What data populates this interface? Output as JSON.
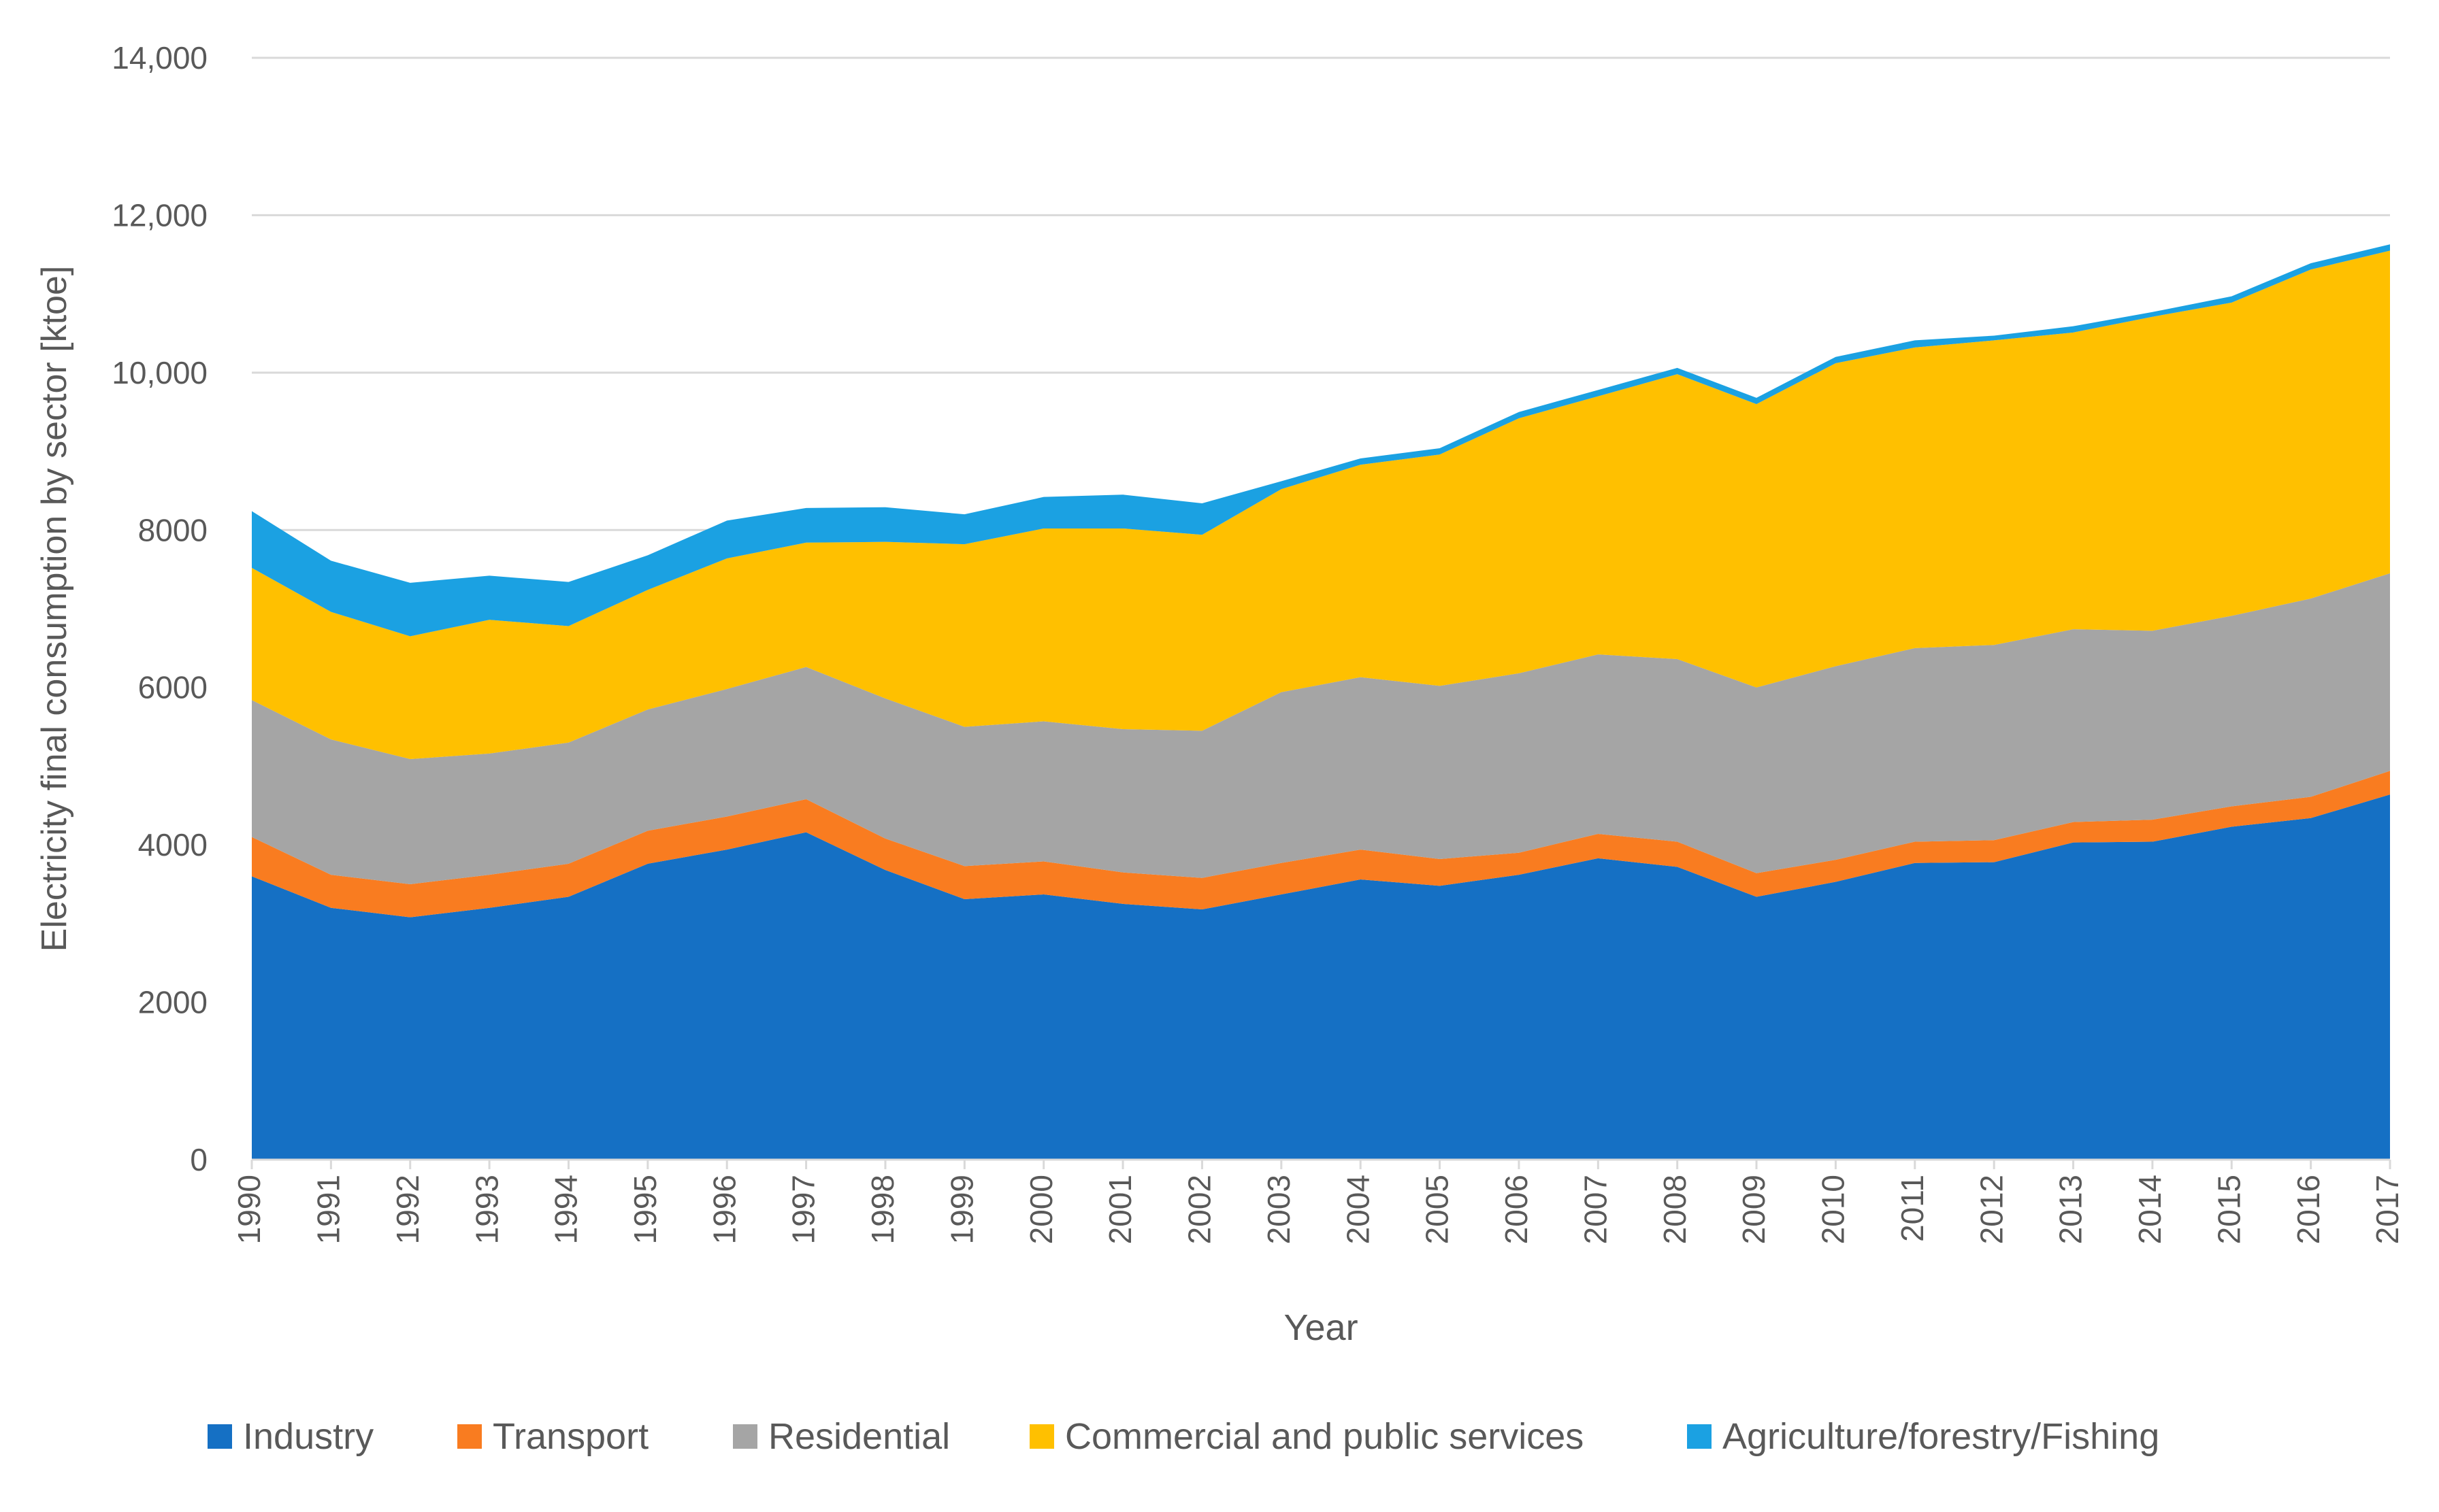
{
  "chart_data": {
    "type": "area",
    "stacked": true,
    "title": "",
    "xlabel": "Year",
    "ylabel": "Electricity final consumption by sector [ktoe]",
    "ylim": [
      0,
      14000
    ],
    "yticks": [
      0,
      2000,
      4000,
      6000,
      8000,
      10000,
      12000,
      14000
    ],
    "ytick_labels": [
      "0",
      "2000",
      "4000",
      "6000",
      "8000",
      "10,000",
      "12,000",
      "14,000"
    ],
    "grid": true,
    "legend_position": "bottom",
    "categories": [
      "1990",
      "1991",
      "1992",
      "1993",
      "1994",
      "1995",
      "1996",
      "1997",
      "1998",
      "1999",
      "2000",
      "2001",
      "2002",
      "2003",
      "2004",
      "2005",
      "2006",
      "2007",
      "2008",
      "2009",
      "2010",
      "2011",
      "2012",
      "2013",
      "2014",
      "2015",
      "2016",
      "2017"
    ],
    "series": [
      {
        "name": "Industry",
        "color": "#1570C4",
        "values": [
          3600,
          3200,
          3080,
          3200,
          3340,
          3760,
          3940,
          4160,
          3680,
          3310,
          3370,
          3250,
          3180,
          3370,
          3560,
          3480,
          3620,
          3830,
          3720,
          3340,
          3530,
          3770,
          3780,
          4030,
          4040,
          4230,
          4340,
          4640
        ]
      },
      {
        "name": "Transport",
        "color": "#F97C20",
        "values": [
          500,
          420,
          420,
          420,
          420,
          420,
          420,
          420,
          400,
          420,
          420,
          400,
          400,
          400,
          380,
          340,
          280,
          310,
          320,
          300,
          280,
          270,
          280,
          260,
          280,
          260,
          270,
          300
        ]
      },
      {
        "name": "Residential",
        "color": "#A5A5A5",
        "values": [
          1740,
          1720,
          1590,
          1540,
          1540,
          1540,
          1620,
          1680,
          1780,
          1770,
          1780,
          1820,
          1870,
          2170,
          2190,
          2200,
          2280,
          2280,
          2320,
          2360,
          2460,
          2460,
          2480,
          2450,
          2400,
          2420,
          2520,
          2510
        ]
      },
      {
        "name": "Commercial and public services",
        "color": "#FFC000",
        "values": [
          1680,
          1620,
          1560,
          1700,
          1480,
          1520,
          1660,
          1580,
          1990,
          2320,
          2450,
          2550,
          2490,
          2580,
          2700,
          2940,
          3240,
          3280,
          3620,
          3600,
          3850,
          3820,
          3870,
          3770,
          3990,
          3980,
          4180,
          4100
        ]
      },
      {
        "name": "Agriculture/forestry/Fishing",
        "color": "#1BA1E2",
        "values": [
          720,
          650,
          680,
          560,
          560,
          440,
          480,
          440,
          440,
          380,
          400,
          430,
          400,
          100,
          80,
          80,
          80,
          80,
          80,
          80,
          80,
          90,
          60,
          80,
          60,
          80,
          80,
          80
        ]
      }
    ]
  }
}
